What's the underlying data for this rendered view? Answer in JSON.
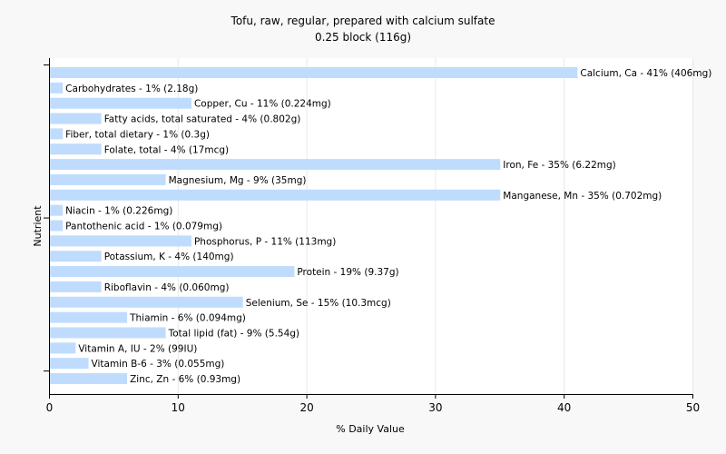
{
  "chart_data": {
    "type": "bar",
    "orientation": "horizontal",
    "title": "Tofu, raw, regular, prepared with calcium sulfate",
    "subtitle": "0.25 block (116g)",
    "xlabel": "% Daily Value",
    "ylabel": "Nutrient",
    "xlim": [
      0,
      50
    ],
    "xticks": [
      "0",
      "10",
      "20",
      "30",
      "40",
      "50"
    ],
    "bar_color": "#bfdcff",
    "grid": true,
    "bars": [
      {
        "value": 41,
        "label": "Calcium, Ca - 41% (406mg)"
      },
      {
        "value": 1,
        "label": "Carbohydrates - 1% (2.18g)"
      },
      {
        "value": 11,
        "label": "Copper, Cu - 11% (0.224mg)"
      },
      {
        "value": 4,
        "label": "Fatty acids, total saturated - 4% (0.802g)"
      },
      {
        "value": 1,
        "label": "Fiber, total dietary - 1% (0.3g)"
      },
      {
        "value": 4,
        "label": "Folate, total - 4% (17mcg)"
      },
      {
        "value": 35,
        "label": "Iron, Fe - 35% (6.22mg)"
      },
      {
        "value": 9,
        "label": "Magnesium, Mg - 9% (35mg)"
      },
      {
        "value": 35,
        "label": "Manganese, Mn - 35% (0.702mg)"
      },
      {
        "value": 1,
        "label": "Niacin - 1% (0.226mg)"
      },
      {
        "value": 1,
        "label": "Pantothenic acid - 1% (0.079mg)"
      },
      {
        "value": 11,
        "label": "Phosphorus, P - 11% (113mg)"
      },
      {
        "value": 4,
        "label": "Potassium, K - 4% (140mg)"
      },
      {
        "value": 19,
        "label": "Protein - 19% (9.37g)"
      },
      {
        "value": 4,
        "label": "Riboflavin - 4% (0.060mg)"
      },
      {
        "value": 15,
        "label": "Selenium, Se - 15% (10.3mcg)"
      },
      {
        "value": 6,
        "label": "Thiamin - 6% (0.094mg)"
      },
      {
        "value": 9,
        "label": "Total lipid (fat) - 9% (5.54g)"
      },
      {
        "value": 2,
        "label": "Vitamin A, IU - 2% (99IU)"
      },
      {
        "value": 3,
        "label": "Vitamin B-6 - 3% (0.055mg)"
      },
      {
        "value": 6,
        "label": "Zinc, Zn - 6% (0.93mg)"
      }
    ]
  }
}
